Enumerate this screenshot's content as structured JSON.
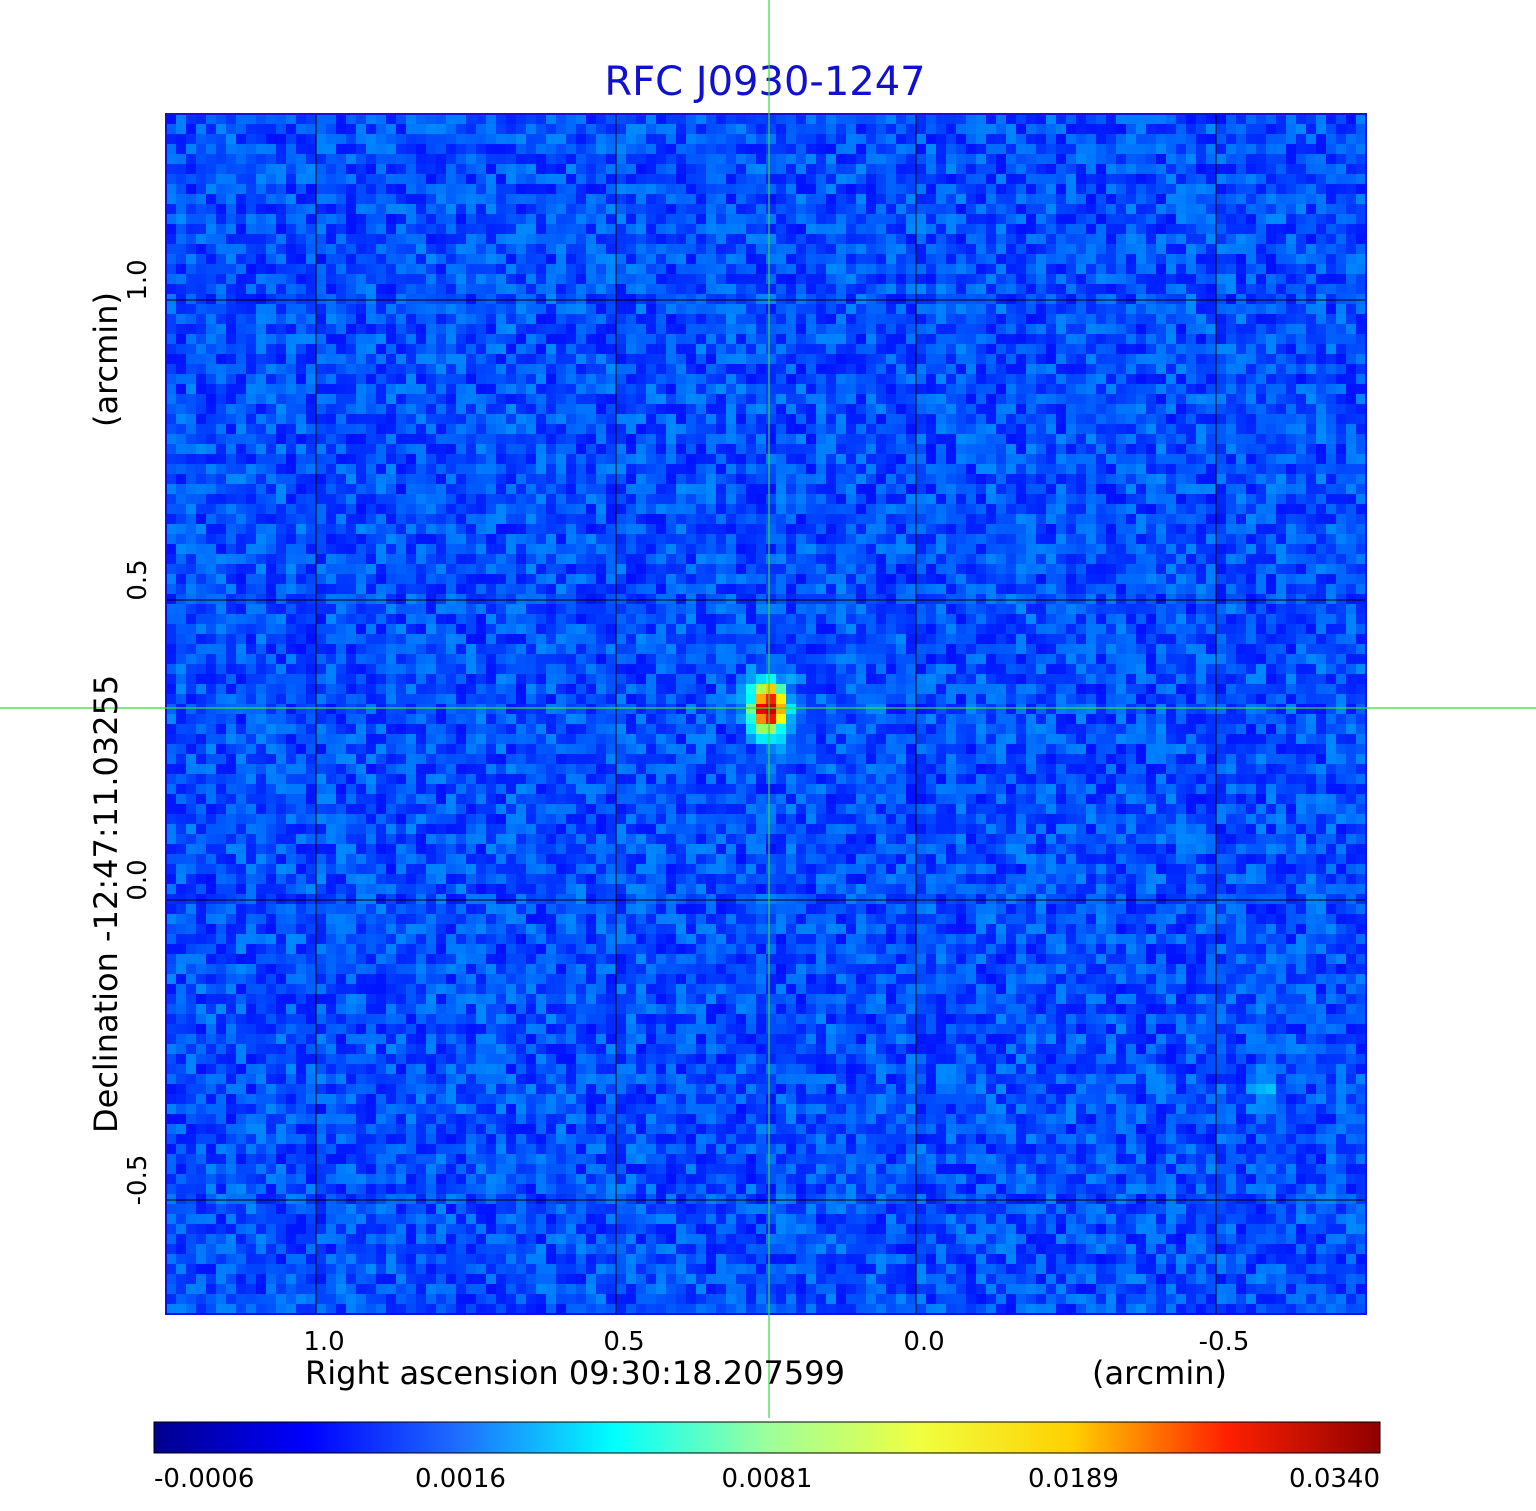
{
  "chart_data": {
    "type": "heatmap",
    "title": "RFC J0930-1247",
    "xlabel": "Right ascension  09:30:18.207599",
    "xlabel_unit": "(arcmin)",
    "ylabel": "Declination  -12:47:11.03255",
    "ylabel_unit": "(arcmin)",
    "x_axis": {
      "reversed": true,
      "ticks": [
        {
          "value": 1.0,
          "label": "1.0"
        },
        {
          "value": 0.5,
          "label": "0.5"
        },
        {
          "value": 0.0,
          "label": "0.0"
        },
        {
          "value": -0.5,
          "label": "-0.5"
        }
      ],
      "range": [
        1.25,
        -0.75
      ]
    },
    "y_axis": {
      "ticks": [
        {
          "value": 1.0,
          "label": "1.0"
        },
        {
          "value": 0.5,
          "label": "0.5"
        },
        {
          "value": 0.0,
          "label": "0.0"
        },
        {
          "value": -0.5,
          "label": "-0.5"
        }
      ],
      "range": [
        -0.69,
        1.31
      ]
    },
    "grid": true,
    "colormap": "jet",
    "colorbar": {
      "placement": "bottom",
      "tick_labels": [
        "-0.0006",
        "0.0016",
        "0.0081",
        "0.0189",
        "0.0340"
      ],
      "min": -0.0006,
      "max": 0.034
    },
    "sources": [
      {
        "x": 0.245,
        "y": 0.32,
        "peak": 0.034,
        "note": "bright compact source"
      },
      {
        "x": -0.58,
        "y": -0.33,
        "peak": 0.003,
        "note": "faint source"
      }
    ],
    "crosshair": {
      "x": 0.245,
      "y": 0.32
    },
    "colors": {
      "title": "#1010d0",
      "grid": "#000000",
      "crosshair": "#33dd33",
      "background_noise": "#1a48f0"
    }
  }
}
